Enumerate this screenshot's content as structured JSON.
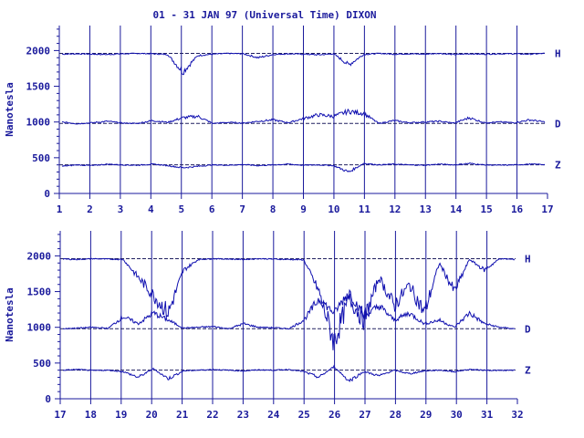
{
  "title": "01 - 31 JAN 97 (Universal Time) DIXON",
  "colors": {
    "ink": "#1a1a9c",
    "trace": "#1010b0",
    "baseline": "#202060"
  },
  "chart_data": [
    {
      "type": "line",
      "x_ticks": [
        "1",
        "2",
        "3",
        "4",
        "5",
        "6",
        "7",
        "8",
        "9",
        "10",
        "11",
        "12",
        "13",
        "14",
        "15",
        "16",
        "17"
      ],
      "xlim": [
        1,
        17
      ],
      "ylabel": "Nanotesla",
      "y_ticks": [
        "0",
        "500",
        "1000",
        "1500",
        "2000"
      ],
      "ylim": [
        0,
        2350
      ],
      "series": [
        {
          "name": "H",
          "baseline": 1960,
          "values": [
            1950,
            1955,
            1950,
            1945,
            1955,
            1960,
            1955,
            1945,
            1700,
            1930,
            1950,
            1960,
            1955,
            1900,
            1945,
            1955,
            1950,
            1940,
            1955,
            1800,
            1945,
            1960,
            1950,
            1955,
            1950,
            1960,
            1945,
            1955,
            1950,
            1955,
            1955,
            1950,
            1960
          ]
        },
        {
          "name": "D",
          "baseline": 980,
          "values": [
            1000,
            975,
            990,
            1010,
            985,
            980,
            1020,
            995,
            1060,
            1080,
            980,
            995,
            985,
            1010,
            1030,
            990,
            1050,
            1100,
            1080,
            1150,
            1120,
            980,
            1020,
            990,
            1000,
            1010,
            985,
            1060,
            990,
            1000,
            990,
            1030,
            1000
          ]
        },
        {
          "name": "Z",
          "baseline": 400,
          "values": [
            380,
            400,
            390,
            410,
            400,
            395,
            410,
            390,
            360,
            380,
            400,
            395,
            405,
            390,
            400,
            410,
            395,
            400,
            390,
            300,
            420,
            400,
            410,
            400,
            395,
            410,
            400,
            420,
            400,
            395,
            400,
            410,
            405
          ]
        }
      ]
    },
    {
      "type": "line",
      "x_ticks": [
        "17",
        "18",
        "19",
        "20",
        "21",
        "22",
        "23",
        "24",
        "25",
        "26",
        "27",
        "28",
        "29",
        "30",
        "31",
        "32"
      ],
      "xlim": [
        17,
        32
      ],
      "ylabel": "Nanotesla",
      "y_ticks": [
        "0",
        "500",
        "1000",
        "1500",
        "2000"
      ],
      "ylim": [
        0,
        2350
      ],
      "series": [
        {
          "name": "H",
          "baseline": 1960,
          "values": [
            1955,
            1950,
            1960,
            1955,
            1950,
            1700,
            1450,
            1200,
            1800,
            1950,
            1960,
            1955,
            1950,
            1960,
            1955,
            1950,
            1945,
            1500,
            800,
            1400,
            1100,
            1700,
            1300,
            1600,
            1200,
            1900,
            1500,
            1950,
            1800,
            1960,
            1950
          ]
        },
        {
          "name": "D",
          "baseline": 980,
          "values": [
            980,
            990,
            1000,
            985,
            1150,
            1050,
            1200,
            1100,
            990,
            1000,
            1010,
            980,
            1050,
            1000,
            995,
            980,
            1100,
            1400,
            1200,
            1500,
            1150,
            1300,
            1100,
            1200,
            1050,
            1100,
            1000,
            1200,
            1050,
            1000,
            980
          ]
        },
        {
          "name": "Z",
          "baseline": 400,
          "values": [
            400,
            410,
            395,
            400,
            380,
            300,
            420,
            280,
            390,
            400,
            410,
            400,
            390,
            405,
            400,
            410,
            380,
            300,
            450,
            250,
            380,
            320,
            400,
            350,
            390,
            400,
            380,
            410,
            400,
            395,
            400
          ]
        }
      ]
    }
  ]
}
